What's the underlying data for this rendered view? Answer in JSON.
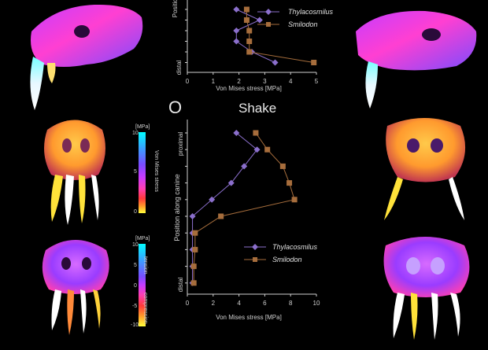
{
  "panel_letter": "O",
  "panel_title": "Shake",
  "top_plot": {
    "ylabel": "Position",
    "bottom_tick_label": "distal",
    "xlabel": "Von Mises stress [MPa]",
    "xticks": [
      "0",
      "1",
      "2",
      "3",
      "4",
      "5"
    ]
  },
  "bottom_plot": {
    "ylabel": "Position along canine",
    "top_tick_label": "proximal",
    "bottom_tick_label": "distal",
    "xlabel": "Von Mises stress [MPa]",
    "xticks": [
      "0",
      "2",
      "4",
      "6",
      "8",
      "10"
    ]
  },
  "stress_colorbar": {
    "unit": "[MPa]",
    "label": "Von Mises stress",
    "ticks": [
      "10",
      "5",
      "0"
    ]
  },
  "tension_colorbar": {
    "unit": "[MPa]",
    "label_top": "tension",
    "label_bottom": "compression",
    "ticks": [
      "10",
      "5",
      "0",
      "-5",
      "-10"
    ]
  },
  "colors": {
    "thylacosmilus": "#8b6fcc",
    "smilodon": "#a66d3c",
    "axis": "#d0d0d0"
  },
  "chart_data": [
    {
      "type": "line",
      "orientation": "x=stress, y=position along canine (index 1=proximal to 10=distal)",
      "xlabel": "Von Mises stress [MPa]",
      "ylabel": "Position",
      "xlim": [
        0,
        5
      ],
      "visible_positions": [
        5,
        6,
        7,
        8,
        9,
        10
      ],
      "series": [
        {
          "name": "Thylacosmilus",
          "marker": "diamond",
          "x": [
            1.9,
            2.8,
            1.9,
            1.9,
            2.5,
            3.4
          ]
        },
        {
          "name": "Smilodon",
          "marker": "square",
          "x": [
            2.3,
            2.3,
            2.4,
            2.4,
            2.4,
            4.9
          ]
        }
      ]
    },
    {
      "type": "line",
      "title": "Shake",
      "orientation": "x=stress, y=position along canine (index 1=proximal to 10=distal)",
      "xlabel": "Von Mises stress [MPa]",
      "ylabel": "Position along canine",
      "xlim": [
        0,
        10
      ],
      "series": [
        {
          "name": "Thylacosmilus",
          "marker": "diamond",
          "x": [
            3.8,
            5.4,
            4.4,
            3.4,
            1.9,
            0.4,
            0.4,
            0.4,
            0.4,
            0.4
          ]
        },
        {
          "name": "Smilodon",
          "marker": "square",
          "x": [
            5.3,
            6.2,
            7.4,
            7.9,
            8.3,
            2.6,
            0.6,
            0.6,
            0.5,
            0.5
          ]
        }
      ]
    }
  ]
}
